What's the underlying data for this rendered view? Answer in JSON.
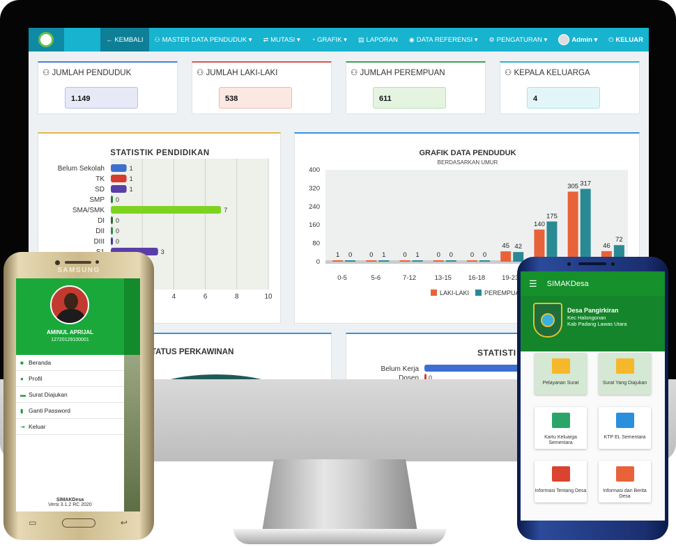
{
  "navbar": {
    "items": [
      {
        "label": "KEMBALI",
        "icon": "arrow-left-icon",
        "glyph": "←",
        "active": true
      },
      {
        "label": "MASTER DATA PENDUDUK ▾",
        "icon": "users-icon",
        "glyph": "👥"
      },
      {
        "label": "MUTASI ▾",
        "icon": "exchange-icon",
        "glyph": "⇄"
      },
      {
        "label": "GRAFIK ▾",
        "icon": "pie-chart-icon",
        "glyph": "◔"
      },
      {
        "label": "LAPORAN",
        "icon": "file-icon",
        "glyph": "▤"
      },
      {
        "label": "DATA REFERENSI ▾",
        "icon": "database-icon",
        "glyph": "◉"
      },
      {
        "label": "PENGATURAN ▾",
        "icon": "gear-icon",
        "glyph": "⚙"
      },
      {
        "label": "Admin ▾",
        "icon": "avatar-icon",
        "glyph": ""
      },
      {
        "label": "KELUAR",
        "icon": "power-icon",
        "glyph": "⏻"
      }
    ]
  },
  "stats": [
    {
      "title": "JUMLAH PENDUDUK",
      "value": "1.149",
      "accent": "#4a7fd6",
      "bg": "#e8e9f6",
      "border": "#b9bde8"
    },
    {
      "title": "JUMLAH LAKI-LAKI",
      "value": "538",
      "accent": "#d9534f",
      "bg": "#fce8e3",
      "border": "#f1b8ad"
    },
    {
      "title": "JUMLAH PEREMPUAN",
      "value": "611",
      "accent": "#3ca155",
      "bg": "#e5f4e1",
      "border": "#b6dfae"
    },
    {
      "title": "KEPALA KELUARGA",
      "value": "4",
      "accent": "#31b0d5",
      "bg": "#e2f6f9",
      "border": "#a8e3ed"
    }
  ],
  "chart_data": [
    {
      "type": "bar",
      "orientation": "horizontal",
      "title": "STATISTIK PENDIDIKAN",
      "categories": [
        "Belum Sekolah",
        "TK",
        "SD",
        "SMP",
        "SMA/SMK",
        "DI",
        "DII",
        "DIII",
        "S1"
      ],
      "values": [
        1,
        1,
        1,
        0,
        7,
        0,
        0,
        0,
        3
      ],
      "colors": [
        "#3e6fd0",
        "#d63b2f",
        "#5a3ea8",
        "#2f7a2f",
        "#7ed321",
        "#2d6a2d",
        "#2d8a4e",
        "#3a3aa0",
        "#5a3ea8"
      ],
      "xticks": [
        "4",
        "6",
        "8",
        "10"
      ],
      "xlim": [
        0,
        10
      ]
    },
    {
      "type": "bar",
      "title": "GRAFIK DATA PENDUDUK",
      "subtitle": "BERDASARKAN UMUR",
      "categories": [
        "0-5",
        "5-6",
        "7-12",
        "13-15",
        "16-18",
        "19-23",
        "",
        "",
        ""
      ],
      "series": [
        {
          "name": "LAKI-LAKI",
          "color": "#e8633a",
          "values": [
            1,
            0,
            0,
            0,
            0,
            45,
            140,
            305,
            46
          ]
        },
        {
          "name": "PEREMPUAN",
          "color": "#2a8a94",
          "values": [
            0,
            1,
            1,
            0,
            0,
            42,
            175,
            317,
            72
          ]
        }
      ],
      "ylim": [
        0,
        400
      ],
      "yticks": [
        "0",
        "80",
        "160",
        "240",
        "320",
        "400"
      ]
    },
    {
      "type": "bar",
      "orientation": "horizontal",
      "title": "STATISTI",
      "categories": [
        "Belum Kerja",
        "Dosen"
      ],
      "values": [
        null,
        0
      ],
      "colors": [
        "#3e6fd0",
        "#d63b2f"
      ]
    }
  ],
  "kawin": {
    "title": "TATUS PERKAWINAN"
  },
  "samsung": {
    "brand": "SAMSUNG",
    "name": "AMINUL APRIJAL",
    "nip": "1272012910000​1",
    "menu": [
      {
        "label": "Beranda",
        "icon": "home-icon",
        "glyph": "⌂"
      },
      {
        "label": "Profil",
        "icon": "user-icon",
        "glyph": "👤"
      },
      {
        "label": "Surat Diajukan",
        "icon": "mail-icon",
        "glyph": "✉"
      },
      {
        "label": "Ganti Password",
        "icon": "lock-icon",
        "glyph": "🔒"
      },
      {
        "label": "Keluar",
        "icon": "logout-icon",
        "glyph": "⇥"
      }
    ],
    "app": "SIMAKDesa",
    "version": "Versi 3.1.2 RC 2020"
  },
  "mobile": {
    "appbar_title": "SIMAKDesa",
    "desa": "Desa Pangirkiran",
    "kec": "Kec Halongonan",
    "kab": "Kab Padang Lawas Utara",
    "tiles": [
      {
        "label": "Pelayanan Surat",
        "icon": "mail-document-icon",
        "color": "#f5b82a"
      },
      {
        "label": "Surat Yang Diajukan",
        "icon": "mail-badge-icon",
        "color": "#f5b82a"
      },
      {
        "label": "Kartu Keluarga Sementara",
        "icon": "family-card-icon",
        "color": "#2aa56a"
      },
      {
        "label": "KTP EL Sementara",
        "icon": "id-card-icon",
        "color": "#2a8fdc"
      },
      {
        "label": "Informasi Tentang Desa",
        "icon": "village-icon",
        "color": "#d9432f"
      },
      {
        "label": "Informasi dan Berita Desa",
        "icon": "news-icon",
        "color": "#e8633a"
      }
    ]
  }
}
